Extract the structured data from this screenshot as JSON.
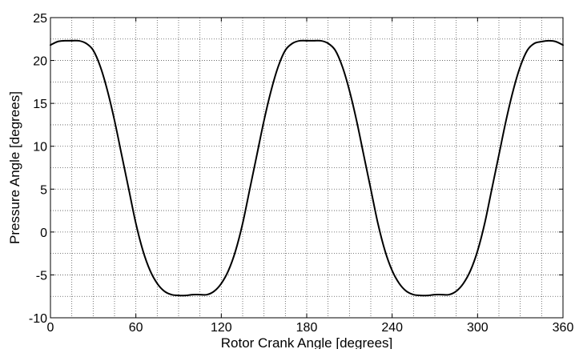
{
  "chart_data": {
    "type": "line",
    "title": "",
    "xlabel": "Rotor Crank Angle [degrees]",
    "ylabel": "Pressure Angle [degrees]",
    "xlim": [
      0,
      360
    ],
    "ylim": [
      -10,
      25
    ],
    "xticks": [
      0,
      60,
      120,
      180,
      240,
      300,
      360
    ],
    "yticks": [
      -10,
      -5,
      0,
      5,
      10,
      15,
      20,
      25
    ],
    "x_tick_labels": [
      "0",
      "60",
      "120",
      "180",
      "240",
      "300",
      "360"
    ],
    "y_tick_labels": [
      "-10",
      "-5",
      "0",
      "5",
      "10",
      "15",
      "20",
      "25"
    ],
    "grid": true,
    "grid_style": "dotted",
    "x_minor_step": 15,
    "y_minor_step": 2.5,
    "line_color": "#000000",
    "series": [
      {
        "x": [
          0,
          5,
          10,
          15,
          20,
          25,
          30,
          35,
          40,
          45,
          50,
          55,
          60,
          65,
          70,
          75,
          80,
          85,
          90,
          95,
          100,
          105,
          110,
          115,
          120,
          125,
          130,
          135,
          140,
          145,
          150,
          155,
          160,
          165,
          170,
          175,
          180,
          185,
          190,
          195,
          200,
          205,
          210,
          215,
          220,
          225,
          230,
          235,
          240,
          245,
          250,
          255,
          260,
          265,
          270,
          275,
          280,
          285,
          290,
          295,
          300,
          305,
          310,
          315,
          320,
          325,
          330,
          335,
          340,
          345,
          350,
          355,
          360
        ],
        "y": [
          21.8,
          22.2,
          22.3,
          22.3,
          22.3,
          22.0,
          21.2,
          19.3,
          16.5,
          13.0,
          9.0,
          5.0,
          1.0,
          -2.2,
          -4.5,
          -6.0,
          -6.9,
          -7.3,
          -7.4,
          -7.4,
          -7.3,
          -7.3,
          -7.3,
          -6.9,
          -6.0,
          -4.5,
          -2.2,
          1.0,
          5.0,
          9.0,
          13.0,
          16.5,
          19.3,
          21.2,
          22.0,
          22.3,
          22.3,
          22.3,
          22.3,
          22.0,
          21.2,
          19.3,
          16.5,
          13.0,
          9.0,
          5.0,
          1.0,
          -2.2,
          -4.5,
          -6.0,
          -6.9,
          -7.3,
          -7.4,
          -7.4,
          -7.3,
          -7.3,
          -7.3,
          -6.9,
          -6.0,
          -4.5,
          -2.2,
          1.0,
          5.0,
          9.0,
          13.0,
          16.5,
          19.3,
          21.2,
          22.0,
          22.2,
          22.3,
          22.2,
          21.8
        ]
      }
    ]
  }
}
